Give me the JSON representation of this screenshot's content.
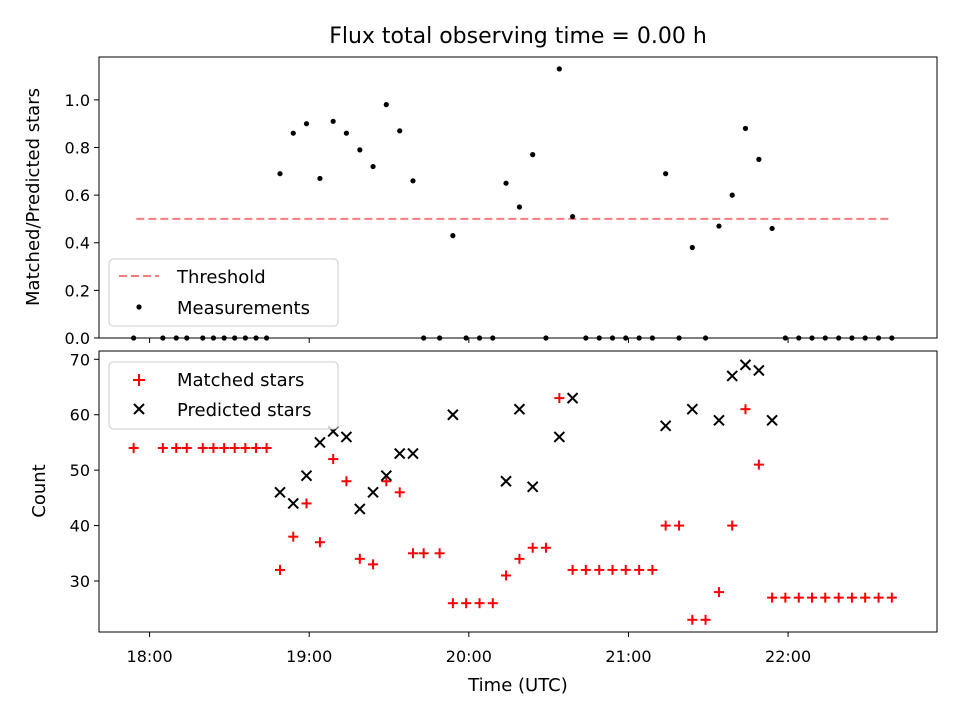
{
  "chart_data": [
    {
      "type": "scatter",
      "title": "Flux total observing time = 0.00 h",
      "xlabel": "",
      "ylabel": "Matched/Predicted stars",
      "xlim": [
        17.683,
        22.933
      ],
      "ylim": [
        0,
        1.18
      ],
      "yticks": [
        0.0,
        0.2,
        0.4,
        0.6,
        0.8,
        1.0
      ],
      "ytick_labels": [
        "0.0",
        "0.2",
        "0.4",
        "0.6",
        "0.8",
        "1.0"
      ],
      "legend": {
        "placement": "lower-left",
        "entries": [
          "Threshold",
          "Measurements"
        ]
      },
      "threshold": {
        "name": "Threshold",
        "value": 0.5,
        "x_range": [
          17.917,
          22.65
        ],
        "color": "#f47c7c",
        "style": "dashed"
      },
      "series": [
        {
          "name": "Measurements",
          "color": "#000000",
          "marker": "dot",
          "x": [
            17.9,
            18.083,
            18.167,
            18.233,
            18.333,
            18.4,
            18.467,
            18.533,
            18.6,
            18.667,
            18.733,
            18.817,
            18.9,
            18.983,
            19.067,
            19.15,
            19.233,
            19.317,
            19.4,
            19.483,
            19.567,
            19.65,
            19.717,
            19.817,
            19.9,
            19.983,
            20.067,
            20.15,
            20.233,
            20.317,
            20.4,
            20.483,
            20.567,
            20.65,
            20.733,
            20.817,
            20.9,
            20.983,
            21.067,
            21.15,
            21.233,
            21.317,
            21.4,
            21.483,
            21.567,
            21.65,
            21.733,
            21.817,
            21.9,
            21.983,
            22.067,
            22.15,
            22.233,
            22.317,
            22.4,
            22.483,
            22.567,
            22.65
          ],
          "y": [
            0,
            0,
            0,
            0,
            0,
            0,
            0,
            0,
            0,
            0,
            0,
            0.69,
            0.86,
            0.9,
            0.67,
            0.91,
            0.86,
            0.79,
            0.72,
            0.98,
            0.87,
            0.66,
            0,
            0,
            0.43,
            0,
            0,
            0,
            0.65,
            0.55,
            0.77,
            0,
            1.13,
            0.51,
            0,
            0,
            0,
            0,
            0,
            0,
            0.69,
            0,
            0.38,
            0,
            0.47,
            0.6,
            0.88,
            0.75,
            0.46,
            0,
            0,
            0,
            0,
            0,
            0,
            0,
            0,
            0
          ]
        }
      ]
    },
    {
      "type": "scatter",
      "title": "",
      "xlabel": "Time (UTC)",
      "ylabel": "Count",
      "xlim": [
        17.683,
        22.933
      ],
      "ylim": [
        20.8,
        71.5
      ],
      "xticks": [
        18,
        19,
        20,
        21,
        22
      ],
      "xtick_labels": [
        "18:00",
        "19:00",
        "20:00",
        "21:00",
        "22:00"
      ],
      "yticks": [
        30,
        40,
        50,
        60,
        70
      ],
      "ytick_labels": [
        "30",
        "40",
        "50",
        "60",
        "70"
      ],
      "legend": {
        "placement": "upper-left",
        "entries": [
          "Matched stars",
          "Predicted stars"
        ]
      },
      "series": [
        {
          "name": "Matched stars",
          "color": "#ff0000",
          "marker": "plus",
          "x": [
            17.9,
            18.083,
            18.167,
            18.233,
            18.333,
            18.4,
            18.467,
            18.533,
            18.6,
            18.667,
            18.733,
            18.817,
            18.9,
            18.983,
            19.067,
            19.15,
            19.233,
            19.317,
            19.4,
            19.483,
            19.567,
            19.65,
            19.717,
            19.817,
            19.9,
            19.983,
            20.067,
            20.15,
            20.233,
            20.317,
            20.4,
            20.483,
            20.567,
            20.65,
            20.733,
            20.817,
            20.9,
            20.983,
            21.067,
            21.15,
            21.233,
            21.317,
            21.4,
            21.483,
            21.567,
            21.65,
            21.733,
            21.817,
            21.9,
            21.983,
            22.067,
            22.15,
            22.233,
            22.317,
            22.4,
            22.483,
            22.567,
            22.65
          ],
          "y": [
            54,
            54,
            54,
            54,
            54,
            54,
            54,
            54,
            54,
            54,
            54,
            32,
            38,
            44,
            37,
            52,
            48,
            34,
            33,
            48,
            46,
            35,
            35,
            35,
            26,
            26,
            26,
            26,
            31,
            34,
            36,
            36,
            63,
            32,
            32,
            32,
            32,
            32,
            32,
            32,
            40,
            40,
            23,
            23,
            28,
            40,
            61,
            51,
            27,
            27,
            27,
            27,
            27,
            27,
            27,
            27,
            27,
            27
          ]
        },
        {
          "name": "Predicted stars",
          "color": "#000000",
          "marker": "x",
          "x": [
            18.817,
            18.9,
            18.983,
            19.067,
            19.15,
            19.233,
            19.317,
            19.4,
            19.483,
            19.567,
            19.65,
            19.9,
            20.233,
            20.317,
            20.4,
            20.567,
            20.65,
            21.233,
            21.4,
            21.567,
            21.65,
            21.733,
            21.817,
            21.9
          ],
          "y": [
            46,
            44,
            49,
            55,
            57,
            56,
            43,
            46,
            49,
            53,
            53,
            60,
            48,
            61,
            47,
            56,
            63,
            58,
            61,
            59,
            67,
            69,
            68,
            59
          ]
        }
      ]
    }
  ]
}
